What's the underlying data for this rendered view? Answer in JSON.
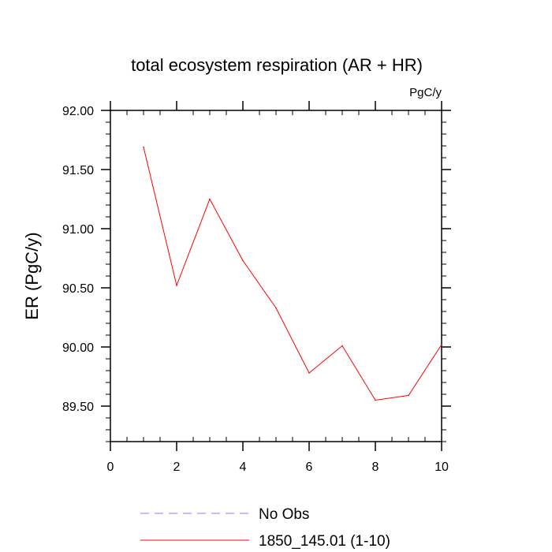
{
  "chart_data": {
    "type": "line",
    "title": "total ecosystem respiration (AR + HR)",
    "units_label": "PgC/y",
    "xlabel": "",
    "ylabel": "ER  (PgC/y)",
    "xlim": [
      0,
      10
    ],
    "ylim": [
      89.2,
      92.0
    ],
    "x_ticks": [
      0,
      2,
      4,
      6,
      8,
      10
    ],
    "x_tick_labels": [
      "0",
      "2",
      "4",
      "6",
      "8",
      "10"
    ],
    "y_ticks": [
      89.5,
      90.0,
      90.5,
      91.0,
      91.5,
      92.0
    ],
    "y_tick_labels": [
      "89.50",
      "90.00",
      "90.50",
      "91.00",
      "91.50",
      "92.00"
    ],
    "grid": false,
    "series": [
      {
        "name": "1850_145.01 (1-10)",
        "color": "#ff0000",
        "style": "solid",
        "x": [
          1,
          2,
          3,
          4,
          5,
          6,
          7,
          8,
          9,
          10
        ],
        "values": [
          91.69,
          90.52,
          91.25,
          90.73,
          90.33,
          89.78,
          90.01,
          89.55,
          89.59,
          90.02
        ]
      }
    ],
    "legend": {
      "placement": "bottom-center",
      "entries": [
        {
          "label": "No Obs",
          "color": "#8080ff",
          "style": "dashed"
        },
        {
          "label": "1850_145.01 (1-10)",
          "color": "#ff0000",
          "style": "solid"
        }
      ]
    }
  }
}
